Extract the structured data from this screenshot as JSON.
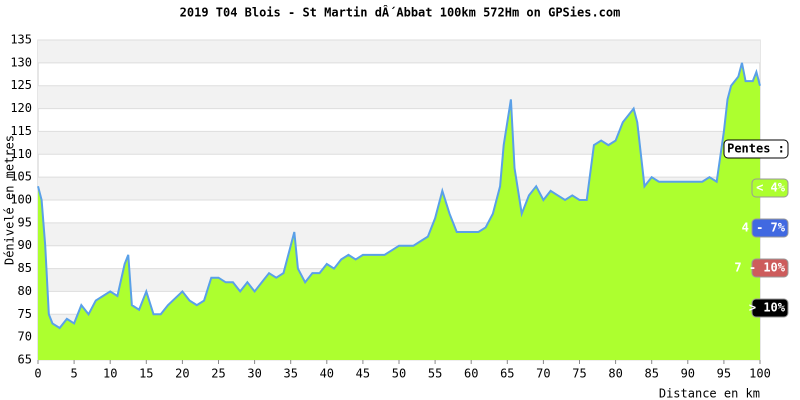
{
  "chart_data": {
    "type": "area",
    "title": "2019 T04 Blois - St Martin dÂ´Abbat 100km 572Hm on GPSies.com",
    "x_label": "Distance en km",
    "y_label": "Dénivelé en metres",
    "xlim": [
      0,
      100
    ],
    "xticks": [
      0,
      5,
      10,
      15,
      20,
      25,
      30,
      35,
      40,
      45,
      50,
      55,
      60,
      65,
      70,
      75,
      80,
      85,
      90,
      95,
      100
    ],
    "ylim": [
      65,
      135
    ],
    "yticks": [
      65,
      70,
      75,
      80,
      85,
      90,
      95,
      100,
      105,
      110,
      115,
      120,
      125,
      130,
      135
    ],
    "grid": true,
    "fill_color": "#adff2f",
    "line_color": "#5aa0e8",
    "x": [
      0,
      0.5,
      1,
      1.5,
      2,
      3,
      4,
      5,
      6,
      7,
      8,
      9,
      10,
      11,
      12,
      12.5,
      13,
      14,
      15,
      16,
      17,
      18,
      20,
      21,
      22,
      23,
      24,
      25,
      26,
      27,
      28,
      29,
      30,
      31,
      32,
      33,
      34,
      35,
      35.5,
      36,
      37,
      38,
      39,
      40,
      41,
      42,
      43,
      44,
      45,
      46,
      47,
      48,
      49,
      50,
      51,
      52,
      53,
      54,
      55,
      56,
      57,
      58,
      59,
      60,
      61,
      62,
      63,
      64,
      64.5,
      65,
      65.5,
      66,
      66.5,
      67,
      68,
      69,
      70,
      71,
      72,
      73,
      74,
      75,
      76,
      77,
      78,
      79,
      80,
      81,
      82,
      82.5,
      83,
      84,
      85,
      86,
      87,
      88,
      89,
      90,
      91,
      92,
      93,
      94,
      95,
      95.5,
      96,
      97,
      97.5,
      98,
      99,
      99.5,
      100
    ],
    "values": [
      103,
      100,
      90,
      75,
      73,
      72,
      74,
      73,
      77,
      75,
      78,
      79,
      80,
      79,
      86,
      88,
      77,
      76,
      80,
      75,
      75,
      77,
      80,
      78,
      77,
      78,
      83,
      83,
      82,
      82,
      80,
      82,
      80,
      82,
      84,
      83,
      84,
      90,
      93,
      85,
      82,
      84,
      84,
      86,
      85,
      87,
      88,
      87,
      88,
      88,
      88,
      88,
      89,
      90,
      90,
      90,
      91,
      92,
      96,
      102,
      97,
      93,
      93,
      93,
      93,
      94,
      97,
      103,
      112,
      117,
      122,
      107,
      102,
      97,
      101,
      103,
      100,
      102,
      101,
      100,
      101,
      100,
      100,
      112,
      113,
      112,
      113,
      117,
      119,
      120,
      117,
      103,
      105,
      104,
      104,
      104,
      104,
      104,
      104,
      104,
      105,
      104,
      115,
      122,
      125,
      127,
      130,
      126,
      126,
      128,
      125
    ],
    "legend": {
      "title": "Pentes :",
      "items": [
        {
          "label": "< 4%",
          "color": "#adff2f"
        },
        {
          "label": "4 - 7%",
          "color": "#4169e1"
        },
        {
          "label": "7 - 10%",
          "color": "#cd5c5c"
        },
        {
          "label": "> 10%",
          "color": "#000000"
        }
      ]
    }
  }
}
